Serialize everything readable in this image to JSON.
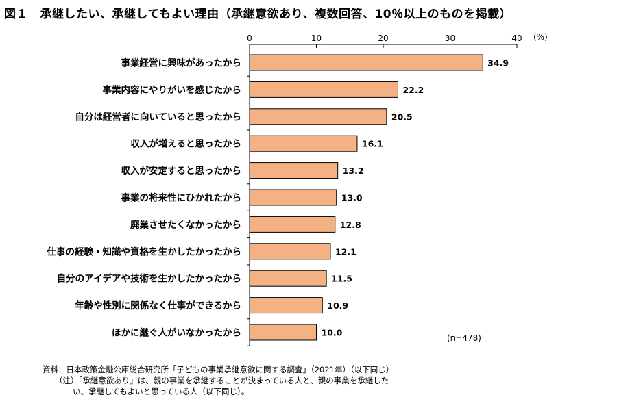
{
  "title": "図１　承継したい、承継してもよい理由（承継意欲あり、複数回答、10％以上のものを掲載）",
  "chart_data": {
    "type": "bar",
    "orientation": "horizontal",
    "title": "承継したい、承継してもよい理由（承継意欲あり、複数回答、10％以上のものを掲載）",
    "unit_label": "(%)",
    "xlim": [
      0,
      40
    ],
    "ticks": [
      0,
      10,
      20,
      30,
      40
    ],
    "grid": false,
    "bar_color": "#f4b183",
    "bar_border_color": "#000000",
    "categories": [
      "事業経営に興味があったから",
      "事業内容にやりがいを感じたから",
      "自分は経営者に向いていると思ったから",
      "収入が増えると思ったから",
      "収入が安定すると思ったから",
      "事業の将来性にひかれたから",
      "廃業させたくなかったから",
      "仕事の経験・知識や資格を生かしたかったから",
      "自分のアイデアや技術を生かしたかったから",
      "年齢や性別に関係なく仕事ができるから",
      "ほかに継ぐ人がいなかったから"
    ],
    "values": [
      34.9,
      22.2,
      20.5,
      16.1,
      13.2,
      13.0,
      12.8,
      12.1,
      11.5,
      10.9,
      10.0
    ],
    "value_labels": [
      "34.9",
      "22.2",
      "20.5",
      "16.1",
      "13.2",
      "13.0",
      "12.8",
      "12.1",
      "11.5",
      "10.9",
      "10.0"
    ],
    "sample_note": "(n=478)"
  },
  "footnotes": {
    "source": "資料：日本政策金融公庫総合研究所「子どもの事業承継意欲に関する調査」（2021年）（以下同じ）",
    "note_line1": "（注）「承継意欲あり」は、親の事業を承継することが決まっている人と、親の事業を承継した",
    "note_line2": "い、承継してもよいと思っている人（以下同じ）。"
  }
}
